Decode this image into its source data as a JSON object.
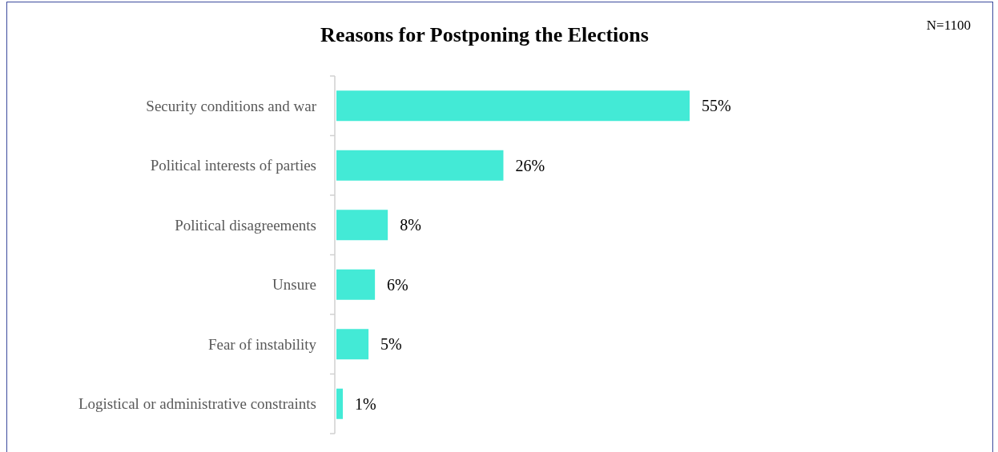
{
  "chart_data": {
    "type": "bar",
    "orientation": "horizontal",
    "title": "Reasons for Postponing the Elections",
    "annotations": [
      "N=1100"
    ],
    "categories": [
      "Security conditions and war",
      "Political interests of parties",
      "Political disagreements",
      "Unsure",
      "Fear of instability",
      "Logistical or administrative constraints"
    ],
    "values": [
      55,
      26,
      8,
      6,
      5,
      1
    ],
    "value_labels": [
      "55%",
      "26%",
      "8%",
      "6%",
      "5%",
      "1%"
    ],
    "color": "#43ead6"
  }
}
